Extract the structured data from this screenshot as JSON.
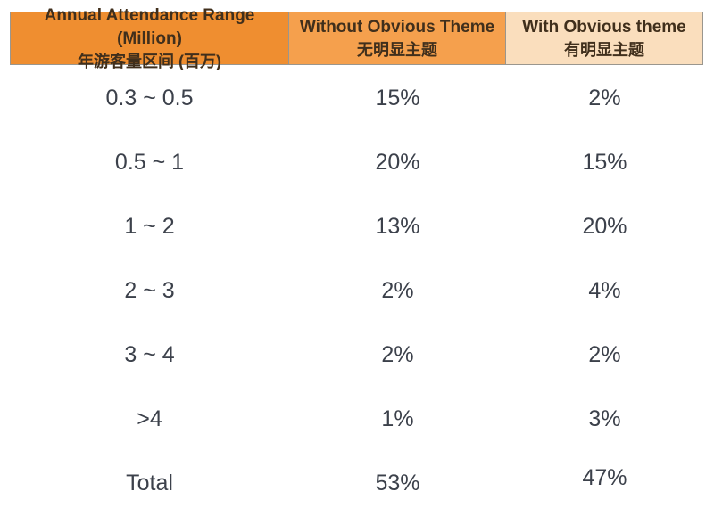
{
  "chart_data": {
    "type": "table",
    "title": "",
    "columns": [
      {
        "title_en": "Annual Attendance Range (Million)",
        "title_zh": "年游客量区间 (百万)"
      },
      {
        "title_en": "Without Obvious Theme",
        "title_zh": "无明显主题"
      },
      {
        "title_en": "With Obvious theme",
        "title_zh": "有明显主题"
      }
    ],
    "rows": [
      {
        "range": "0.3 ~ 0.5",
        "without": "15%",
        "with": "2%"
      },
      {
        "range": "0.5 ~ 1",
        "without": "20%",
        "with": "15%"
      },
      {
        "range": "1 ~ 2",
        "without": "13%",
        "with": "20%"
      },
      {
        "range": "2 ~ 3",
        "without": "2%",
        "with": "4%"
      },
      {
        "range": "3 ~ 4",
        "without": "2%",
        "with": "2%"
      },
      {
        "range": ">4",
        "without": "1%",
        "with": "3%"
      },
      {
        "range": "Total",
        "without": "53%",
        "with": "47%"
      }
    ]
  },
  "colors": {
    "header_col1_bg": "#ef8e30",
    "header_col2_bg": "#f5a04d",
    "header_col3_bg": "#fadebd",
    "header_text": "#402f1c",
    "header_border": "#9a968e",
    "body_text": "#3c414b",
    "page_bg": "#ffffff"
  }
}
